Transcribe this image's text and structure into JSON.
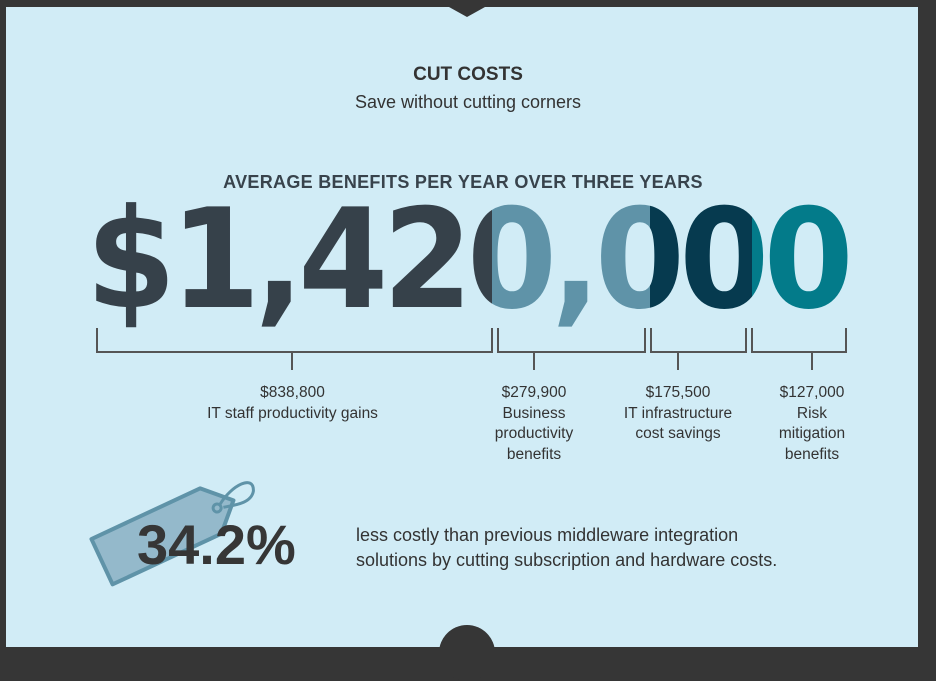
{
  "header": {
    "title": "CUT COSTS",
    "subtitle": "Save without cutting corners"
  },
  "benefits": {
    "heading": "AVERAGE BENEFITS PER YEAR OVER THREE YEARS",
    "total": "$1,420,000",
    "breakdown": [
      {
        "amount": "$838,800",
        "label": "IT staff productivity gains"
      },
      {
        "amount": "$279,900",
        "label": "Business productivity benefits"
      },
      {
        "amount": "$175,500",
        "label": "IT infrastructure cost savings"
      },
      {
        "amount": "$127,000",
        "label": "Risk mitigation benefits"
      }
    ]
  },
  "colors": {
    "dark": "#36414a",
    "light": "#5f93a8",
    "navy": "#063a4f",
    "teal": "#037b8a",
    "bg": "#d1ecf6"
  },
  "savings": {
    "percent": "34.2%",
    "description_line1": "less costly than previous middleware integration",
    "description_line2": "solutions by cutting subscription and hardware costs.",
    "icon": "price-tag-icon"
  }
}
